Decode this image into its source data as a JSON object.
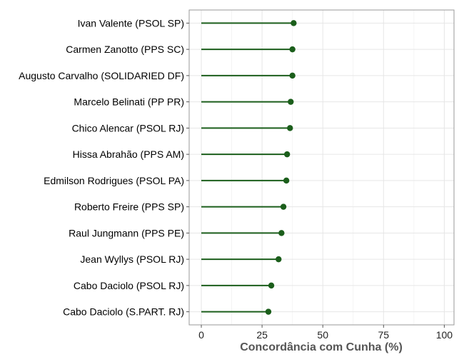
{
  "chart_data": {
    "type": "lollipop",
    "xlabel": "Concordância com Cunha (%)",
    "xlim": [
      -5,
      104
    ],
    "xticks": [
      0,
      25,
      50,
      75,
      100
    ],
    "xtick_labels": [
      "0",
      "25",
      "50",
      "75",
      "100"
    ],
    "grid": true,
    "color": "#1b5e1b",
    "categories": [
      "Ivan Valente (PSOL SP)",
      "Carmen Zanotto (PPS SC)",
      "Augusto Carvalho (SOLIDARIED DF)",
      "Marcelo Belinati (PP PR)",
      "Chico Alencar (PSOL RJ)",
      "Hissa Abrahão (PPS AM)",
      "Edmilson Rodrigues (PSOL PA)",
      "Roberto Freire (PPS SP)",
      "Raul Jungmann (PPS PE)",
      "Jean Wyllys (PSOL RJ)",
      "Cabo Daciolo (PSOL RJ)",
      "Cabo Daciolo (S.PART. RJ)"
    ],
    "values": [
      38.0,
      37.5,
      37.5,
      36.8,
      36.5,
      35.3,
      35.0,
      33.8,
      33.0,
      31.8,
      28.8,
      27.6
    ]
  }
}
